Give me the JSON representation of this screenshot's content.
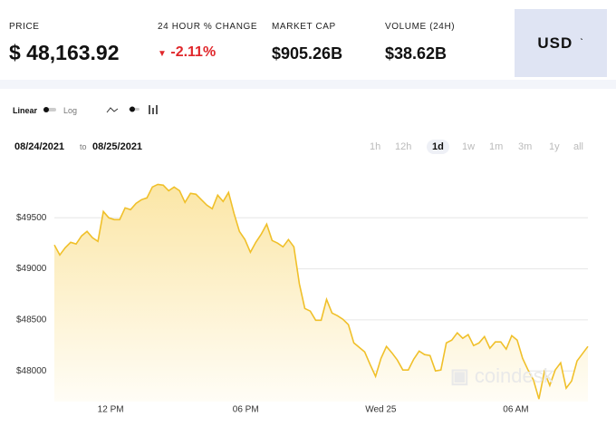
{
  "header": {
    "stats": [
      {
        "label": "PRICE",
        "value": "$ 48,163.92"
      },
      {
        "label": "24 HOUR % CHANGE",
        "value": "-2.11%"
      },
      {
        "label": "MARKET CAP",
        "value": "$905.26B"
      },
      {
        "label": "VOLUME (24H)",
        "value": "$38.62B"
      }
    ],
    "currency": "USD"
  },
  "controls": {
    "scales": [
      "Linear",
      "Log"
    ],
    "from": "08/24/2021",
    "to_word": "to",
    "to": "08/25/2021",
    "ranges": [
      "1h",
      "12h",
      "1d",
      "1w",
      "1m",
      "3m",
      "1y",
      "all"
    ],
    "selected_range": 2
  },
  "watermark": "coindesk",
  "chart_data": {
    "type": "area",
    "color": "#f0c02a",
    "values": [
      49234,
      49136,
      49207,
      49260,
      49243,
      49323,
      49367,
      49305,
      49269,
      49562,
      49500,
      49482,
      49482,
      49598,
      49580,
      49642,
      49678,
      49695,
      49802,
      49828,
      49820,
      49766,
      49802,
      49766,
      49651,
      49740,
      49731,
      49678,
      49624,
      49589,
      49722,
      49660,
      49749,
      49544,
      49367,
      49287,
      49163,
      49260,
      49340,
      49438,
      49278,
      49252,
      49216,
      49287,
      49216,
      48852,
      48612,
      48586,
      48497,
      48497,
      48701,
      48568,
      48541,
      48506,
      48453,
      48275,
      48231,
      48186,
      48062,
      47947,
      48124,
      48240,
      48178,
      48107,
      48009,
      48009,
      48115,
      48195,
      48160,
      48151,
      48000,
      48009,
      48275,
      48302,
      48373,
      48320,
      48355,
      48249,
      48275,
      48337,
      48222,
      48284,
      48284,
      48213,
      48346,
      48302,
      48124,
      48009,
      47911,
      47725,
      47991,
      47858,
      48009,
      48080,
      47831,
      47902,
      48098,
      48169,
      48240
    ],
    "xlim": [
      9.5,
      33.2
    ],
    "xticks": [
      {
        "value": 12,
        "label": "12 PM"
      },
      {
        "value": 18,
        "label": "06 PM"
      },
      {
        "value": 24,
        "label": "Wed 25"
      },
      {
        "value": 30,
        "label": "06 AM"
      }
    ],
    "ylim": [
      47700,
      50000
    ],
    "yticks": [
      {
        "value": 48000,
        "label": "$48000"
      },
      {
        "value": 48500,
        "label": "$48500"
      },
      {
        "value": 49000,
        "label": "$49000"
      },
      {
        "value": 49500,
        "label": "$49500"
      }
    ],
    "grid": true
  }
}
